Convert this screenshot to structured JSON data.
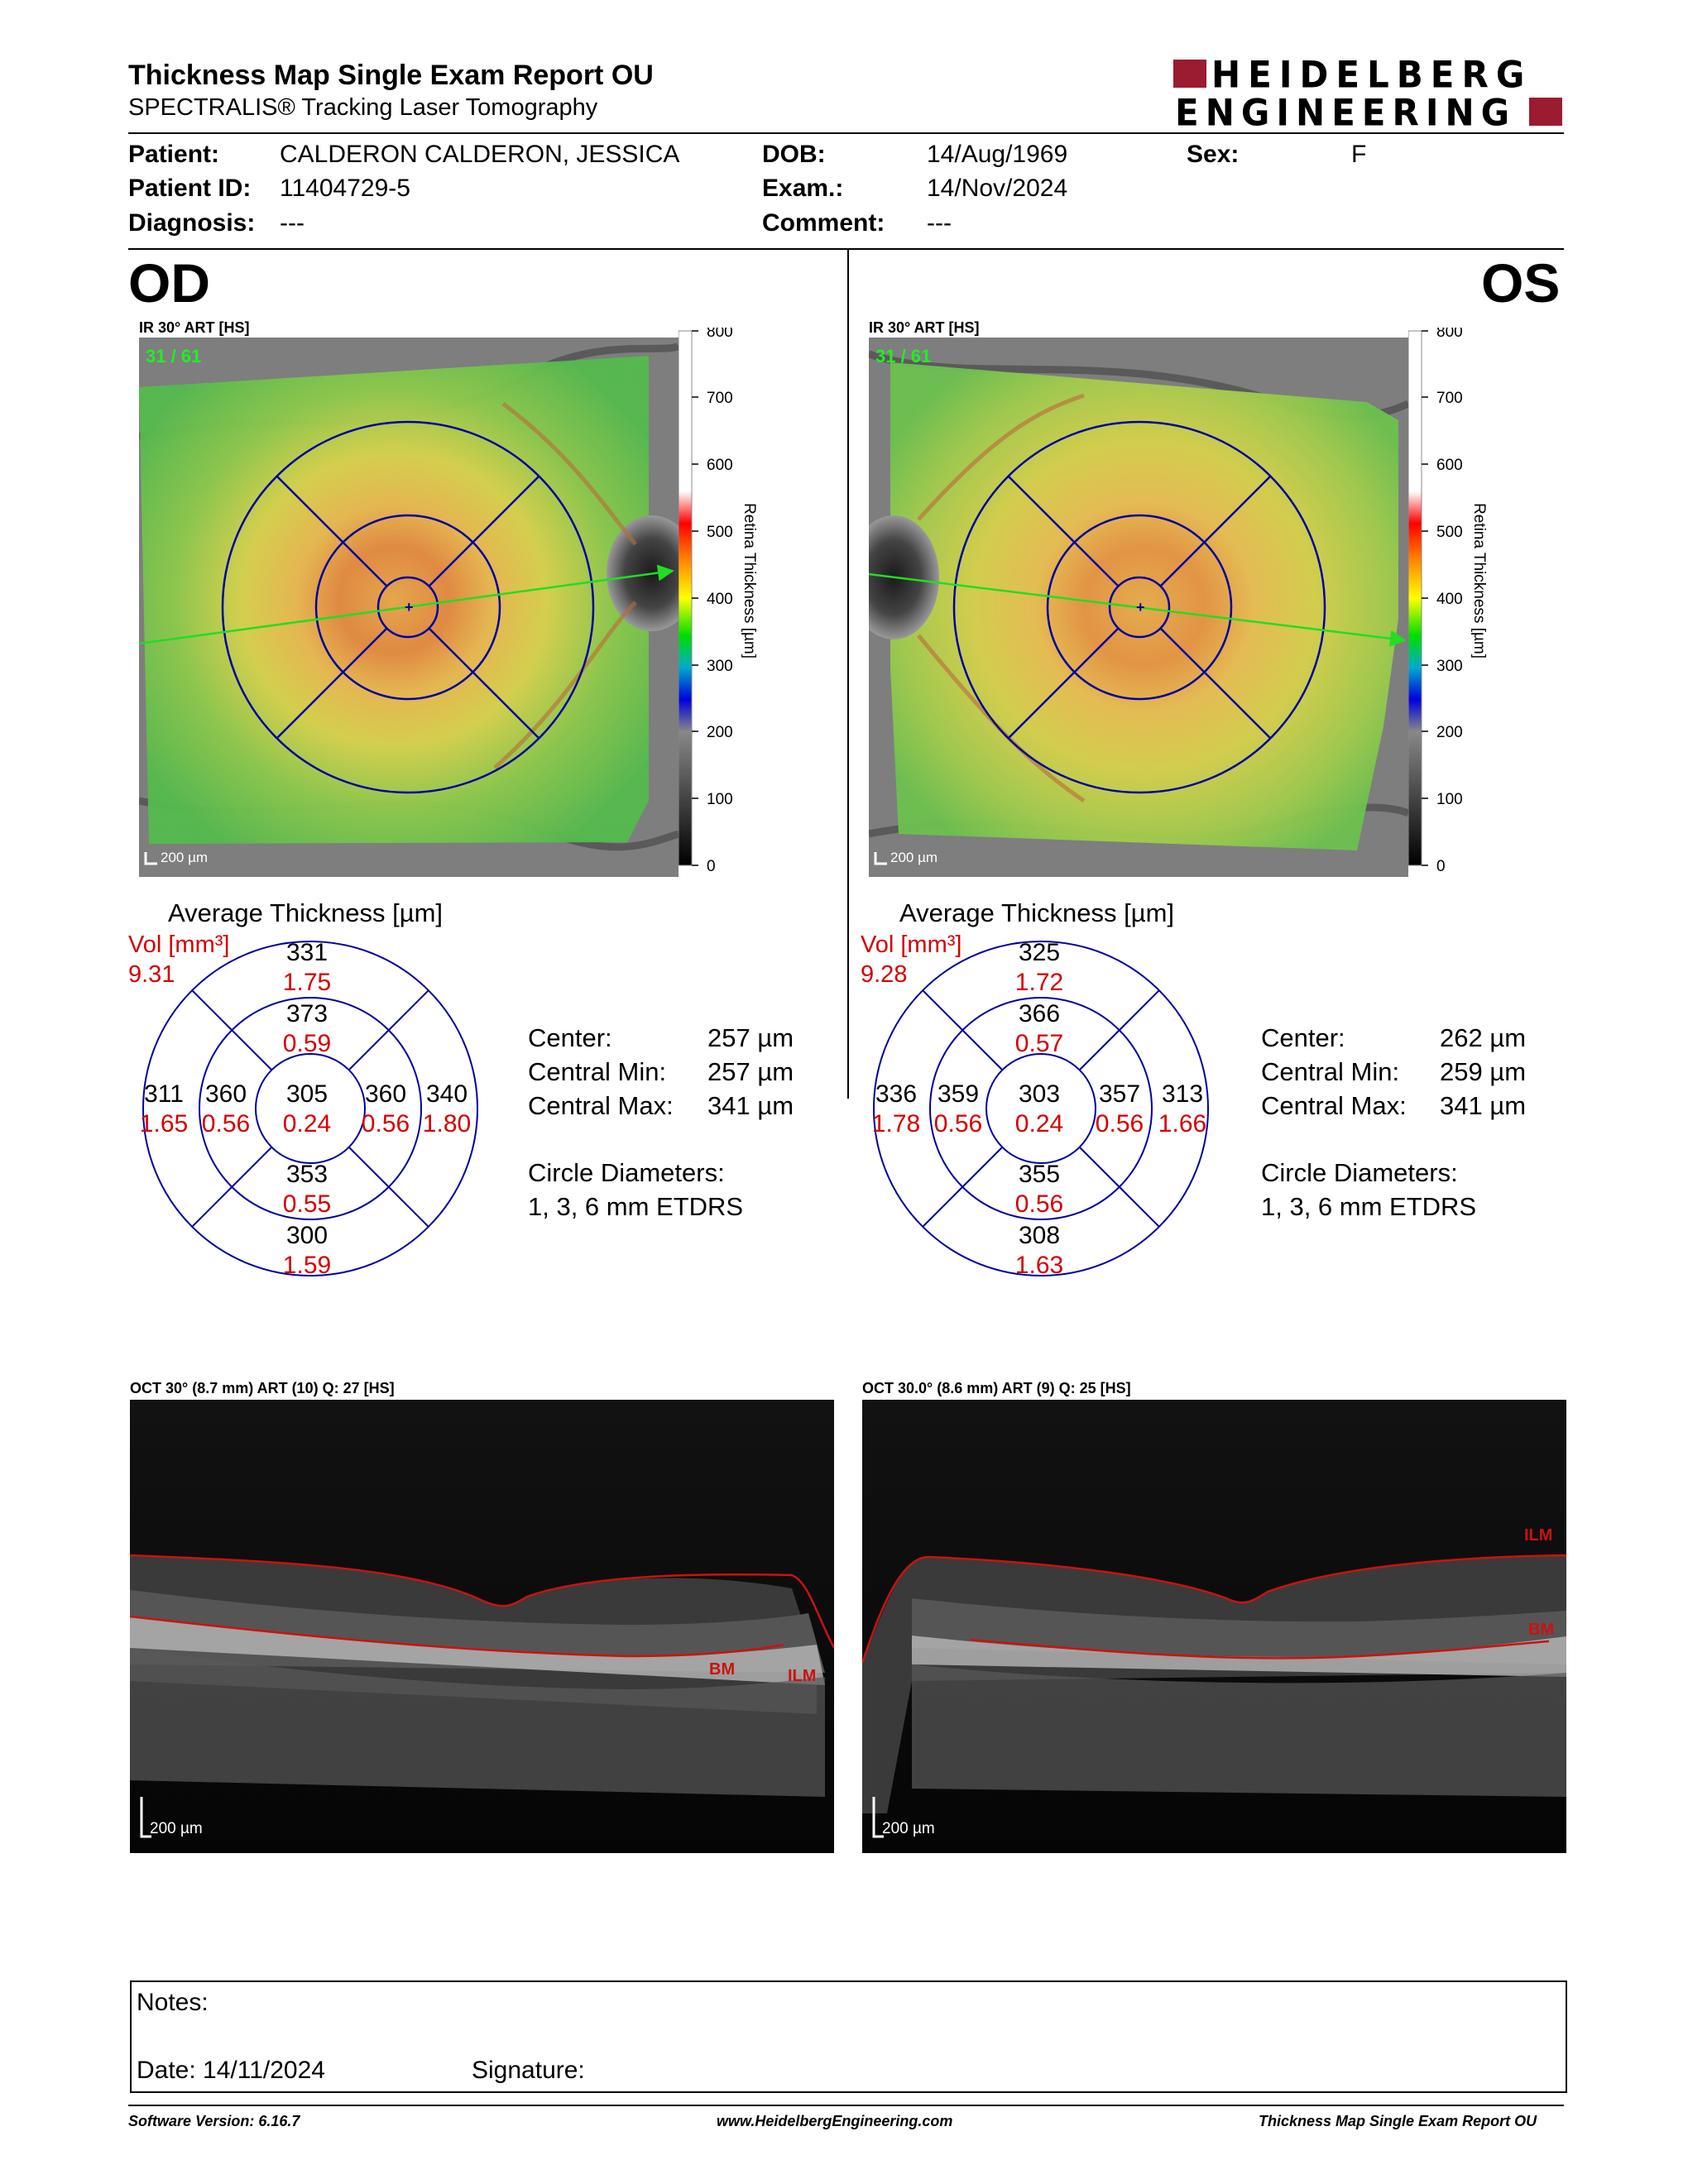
{
  "header": {
    "title": "Thickness Map Single Exam Report OU",
    "subtitle": "SPECTRALIS® Tracking Laser Tomography",
    "logo_line1": "HEIDELBERG",
    "logo_line2": "ENGINEERING"
  },
  "patient": {
    "name_label": "Patient:",
    "name": "CALDERON CALDERON, JESSICA",
    "id_label": "Patient ID:",
    "id": "11404729-5",
    "diagnosis_label": "Diagnosis:",
    "diagnosis": "---",
    "dob_label": "DOB:",
    "dob": "14/Aug/1969",
    "exam_label": "Exam.:",
    "exam": "14/Nov/2024",
    "comment_label": "Comment:",
    "comment": "---",
    "sex_label": "Sex:",
    "sex": "F"
  },
  "od": {
    "eye": "OD",
    "ir_caption": "IR 30° ART [HS]",
    "frames": "31 / 61",
    "scalebar": "200 µm",
    "avg_title": "Average Thickness [µm]",
    "vol_label": "Vol [mm³]",
    "vol_total": "9.31",
    "grid": {
      "outer_sup": {
        "t": "331",
        "v": "1.75"
      },
      "inner_sup": {
        "t": "373",
        "v": "0.59"
      },
      "outer_temp": {
        "t": "311",
        "v": "1.65"
      },
      "inner_temp": {
        "t": "360",
        "v": "0.56"
      },
      "center": {
        "t": "305",
        "v": "0.24"
      },
      "inner_nasal": {
        "t": "360",
        "v": "0.56"
      },
      "outer_nasal": {
        "t": "340",
        "v": "1.80"
      },
      "inner_inf": {
        "t": "353",
        "v": "0.55"
      },
      "outer_inf": {
        "t": "300",
        "v": "1.59"
      }
    },
    "center_label": "Center:",
    "center_val": "257 µm",
    "cmin_label": "Central Min:",
    "cmin_val": "257 µm",
    "cmax_label": "Central Max:",
    "cmax_val": "341 µm",
    "circ_label": "Circle Diameters:",
    "circ_val": "1, 3, 6 mm ETDRS",
    "oct_caption": "OCT 30° (8.7 mm) ART (10) Q: 27 [HS]",
    "oct_labels": {
      "bm": "BM",
      "ilm": "ILM"
    }
  },
  "os": {
    "eye": "OS",
    "ir_caption": "IR 30° ART [HS]",
    "frames": "31 / 61",
    "scalebar": "200 µm",
    "avg_title": "Average Thickness [µm]",
    "vol_label": "Vol [mm³]",
    "vol_total": "9.28",
    "grid": {
      "outer_sup": {
        "t": "325",
        "v": "1.72"
      },
      "inner_sup": {
        "t": "366",
        "v": "0.57"
      },
      "outer_temp": {
        "t": "336",
        "v": "1.78"
      },
      "inner_temp": {
        "t": "359",
        "v": "0.56"
      },
      "center": {
        "t": "303",
        "v": "0.24"
      },
      "inner_nasal": {
        "t": "357",
        "v": "0.56"
      },
      "outer_nasal": {
        "t": "313",
        "v": "1.66"
      },
      "inner_inf": {
        "t": "355",
        "v": "0.56"
      },
      "outer_inf": {
        "t": "308",
        "v": "1.63"
      }
    },
    "center_label": "Center:",
    "center_val": "262 µm",
    "cmin_label": "Central Min:",
    "cmin_val": "259 µm",
    "cmax_label": "Central Max:",
    "cmax_val": "341 µm",
    "circ_label": "Circle Diameters:",
    "circ_val": "1, 3, 6 mm ETDRS",
    "oct_caption": "OCT 30.0° (8.6 mm) ART (9) Q: 25 [HS]",
    "oct_labels": {
      "bm": "BM",
      "ilm": "ILM"
    }
  },
  "colorbar": {
    "ticks": [
      "800",
      "700",
      "600",
      "500",
      "400",
      "300",
      "200",
      "100",
      "0"
    ],
    "label": "Retina Thickness [µm]"
  },
  "notes": {
    "notes_label": "Notes:",
    "date_label": "Date: 14/11/2024",
    "signature_label": "Signature:"
  },
  "footer": {
    "left": "Software Version: 6.16.7",
    "center": "www.HeidelbergEngineering.com",
    "right": "Thickness Map Single Exam Report OU"
  },
  "colors": {
    "logo_red": "#9b1b30",
    "etdrs_blue": "#0000a0",
    "volume_red": "#d40000",
    "scan_arrow": "#22dd22",
    "segmentation_red": "#cc1111"
  }
}
